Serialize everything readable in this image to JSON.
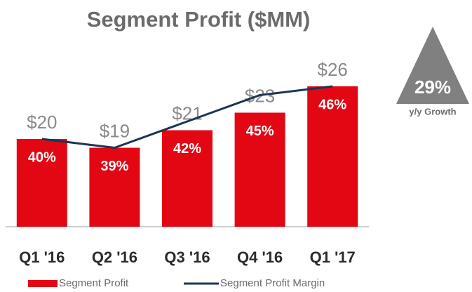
{
  "chart_data": {
    "type": "bar",
    "title": "Segment Profit ($MM)",
    "categories": [
      "Q1 '16",
      "Q2 '16",
      "Q3 '16",
      "Q4 '16",
      "Q1 '17"
    ],
    "series": [
      {
        "name": "Segment Profit",
        "color": "#e30613",
        "values": [
          20,
          19,
          21,
          23,
          26
        ],
        "value_labels": [
          "$20",
          "$19",
          "$21",
          "$23",
          "$26"
        ]
      },
      {
        "name": "Segment Profit Margin",
        "color": "#1c3553",
        "axis": "y2",
        "values": [
          40,
          39,
          42,
          45,
          46
        ],
        "value_labels": [
          "40%",
          "39%",
          "42%",
          "45%",
          "46%"
        ]
      }
    ],
    "ylim": [
      10,
      30
    ],
    "y2lim": [
      30,
      50
    ],
    "annotation": {
      "text": "29%",
      "caption": "y/y Growth"
    }
  }
}
